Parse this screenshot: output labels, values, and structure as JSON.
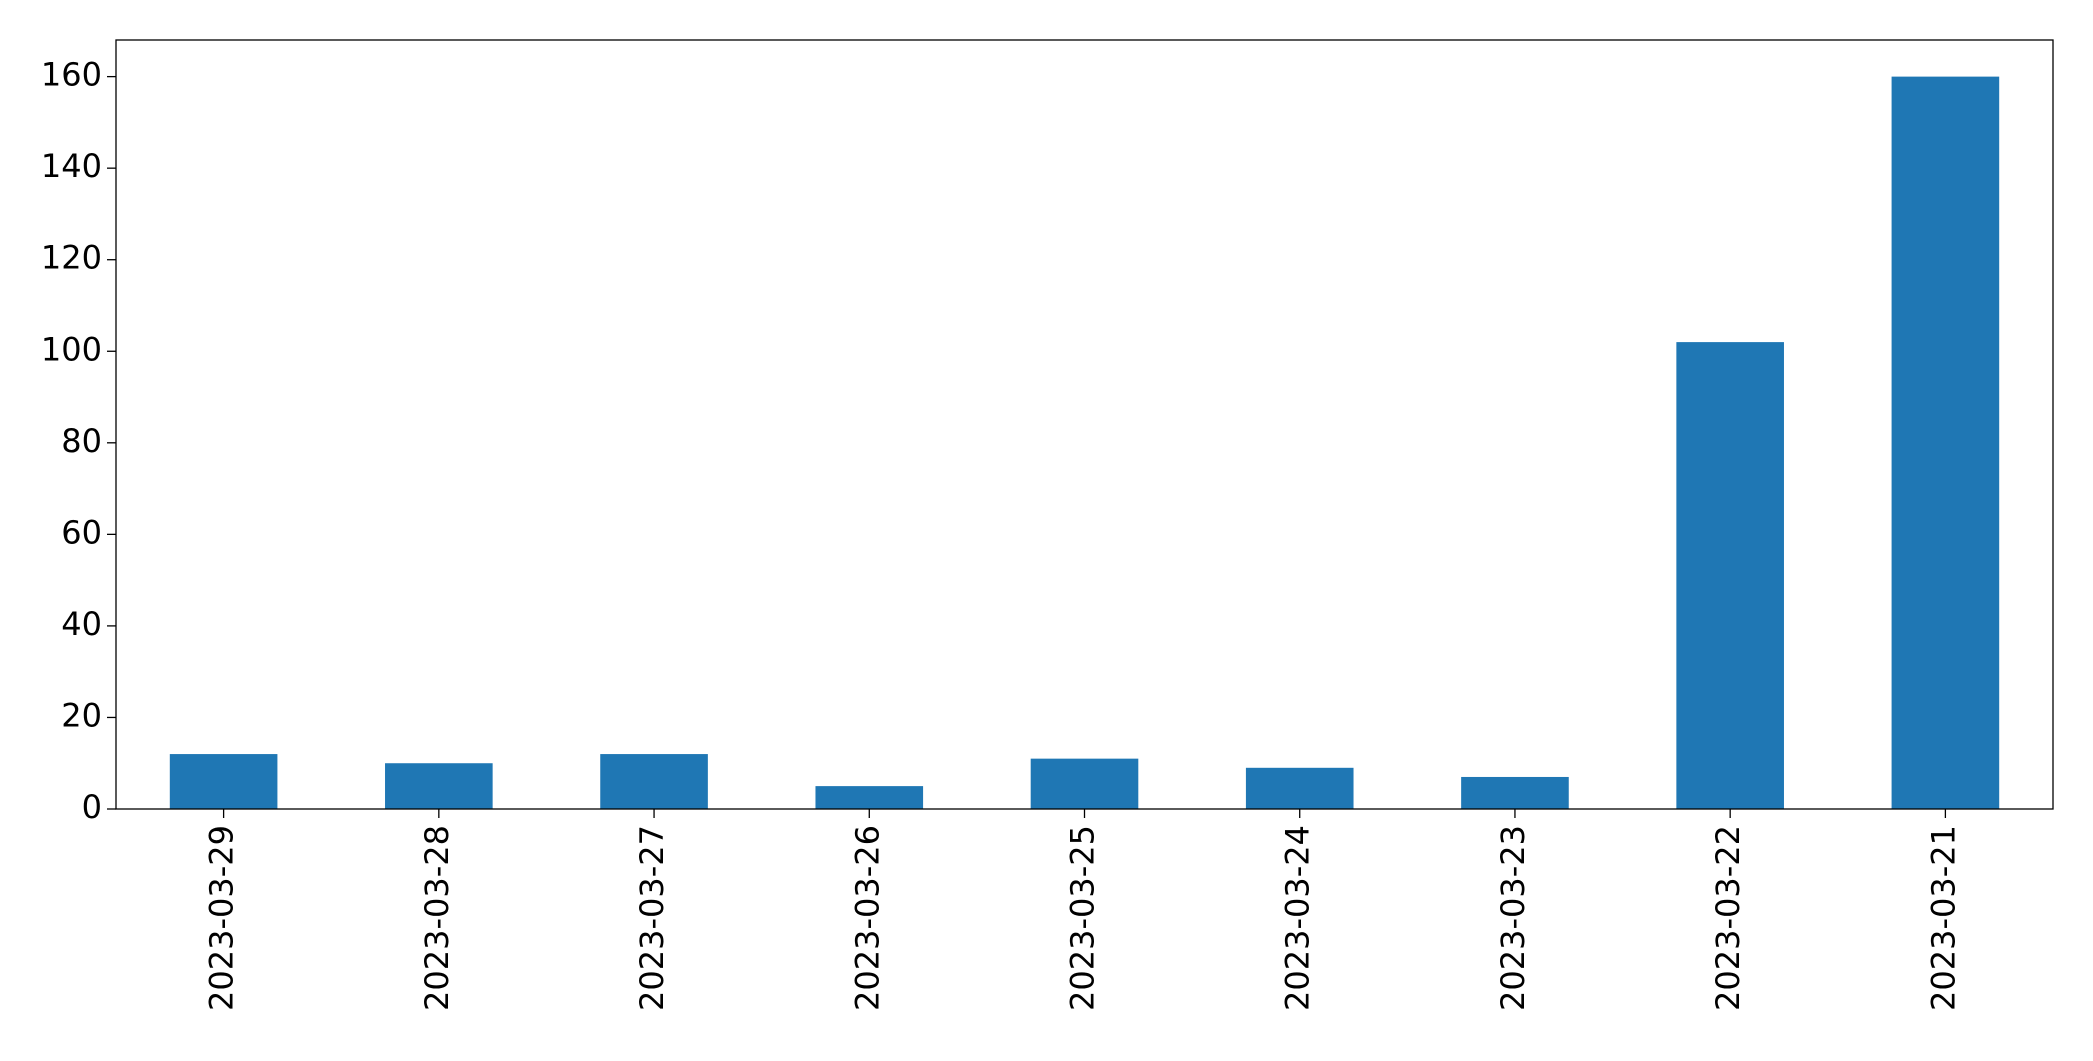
{
  "chart_data": {
    "type": "bar",
    "categories": [
      "2023-03-29",
      "2023-03-28",
      "2023-03-27",
      "2023-03-26",
      "2023-03-25",
      "2023-03-24",
      "2023-03-23",
      "2023-03-22",
      "2023-03-21"
    ],
    "values": [
      12,
      10,
      12,
      5,
      11,
      9,
      7,
      102,
      160
    ],
    "color": "#1f77b4",
    "ylim": [
      0,
      168
    ],
    "yticks": [
      0,
      20,
      40,
      60,
      80,
      100,
      120,
      140,
      160
    ],
    "grid": false
  }
}
